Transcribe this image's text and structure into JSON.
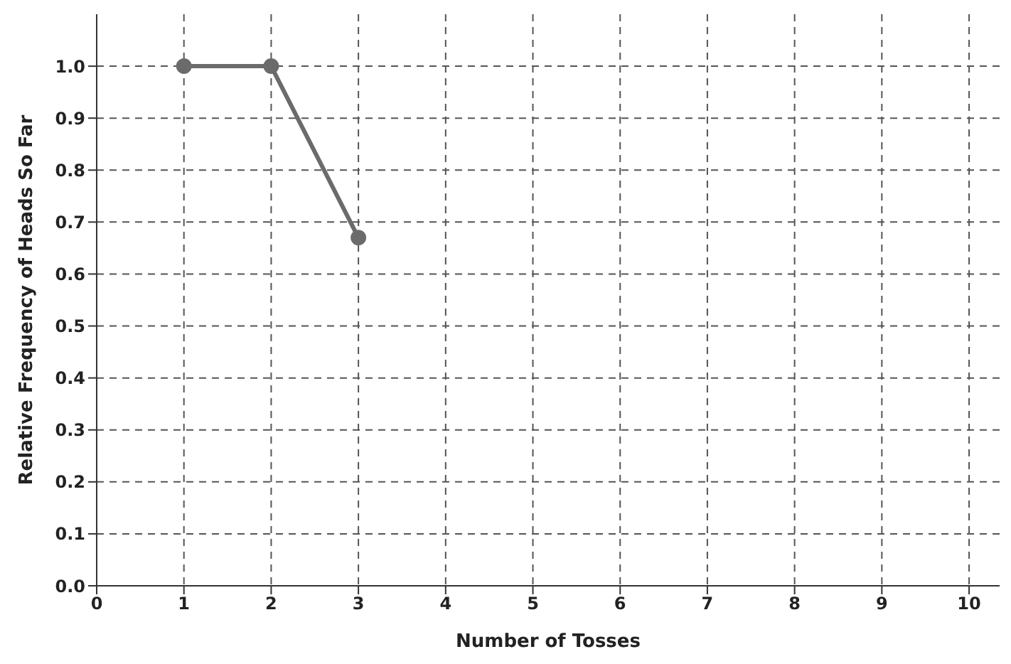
{
  "chart_data": {
    "type": "line",
    "xlabel": "Number of Tosses",
    "ylabel": "Relative Frequency of Heads So Far",
    "x": [
      1,
      2,
      3
    ],
    "series": [
      {
        "color": "#6b6b6b",
        "values": [
          1.0,
          1.0,
          0.67
        ]
      }
    ],
    "xlim": [
      0,
      10.35
    ],
    "xticks": [
      0,
      1,
      2,
      3,
      4,
      5,
      6,
      7,
      8,
      9,
      10
    ],
    "ylim": [
      0,
      1.1
    ],
    "yticks": [
      {
        "value": 0,
        "label": "0.0"
      },
      0.1,
      0.2,
      0.3,
      0.4,
      0.5,
      0.6,
      0.7,
      0.8,
      0.9,
      {
        "value": 1,
        "label": "1.0"
      }
    ],
    "grid": true,
    "marker": "circle",
    "line_style": "solid",
    "legend": false
  }
}
